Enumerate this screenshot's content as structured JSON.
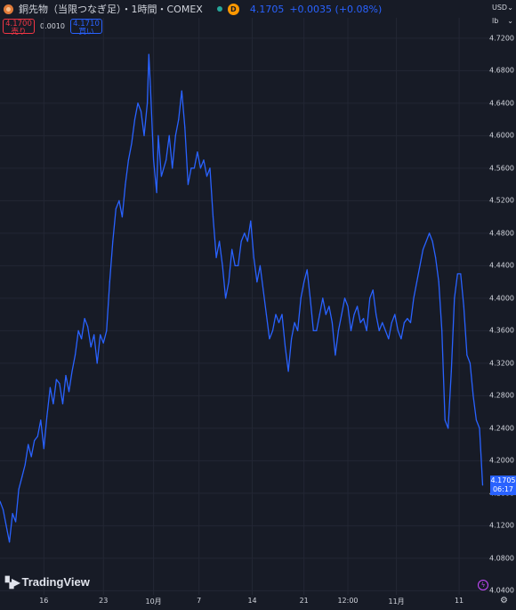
{
  "header": {
    "title": "銅先物（当限つなぎ足）・1時間・COMEX",
    "badge": "D",
    "price": "4.1705",
    "change": "+0.0035 (+0.08%)"
  },
  "quotes": {
    "sell_price": "4.1700",
    "sell_label": "売り",
    "spread": "0.0010",
    "buy_price": "4.1710",
    "buy_label": "買い"
  },
  "axis_controls": {
    "currency": "USD",
    "unit": "lb"
  },
  "last_price_tag": {
    "price": "4.1705",
    "countdown": "06:17"
  },
  "logo": {
    "text": "TradingView"
  },
  "colors": {
    "background": "#171b26",
    "line": "#2962ff",
    "grid": "#232734",
    "text": "#d1d4dc"
  },
  "chart_data": {
    "type": "line",
    "title": "銅先物（当限つなぎ足）・1時間・COMEX",
    "xlabel": "",
    "ylabel": "",
    "ylim": [
      4.035,
      4.745
    ],
    "y_ticks": [
      4.04,
      4.08,
      4.12,
      4.16,
      4.2,
      4.24,
      4.28,
      4.32,
      4.36,
      4.4,
      4.44,
      4.48,
      4.52,
      4.56,
      4.6,
      4.64,
      4.68,
      4.72
    ],
    "y_tick_labels": [
      "4.0400",
      "4.0800",
      "4.1200",
      "4.1600",
      "4.2000",
      "4.2400",
      "4.2800",
      "4.3200",
      "4.3600",
      "4.4000",
      "4.4400",
      "4.4800",
      "4.5200",
      "4.5600",
      "4.6000",
      "4.6400",
      "4.6800",
      "4.7200"
    ],
    "x_tick_labels": [
      "16",
      "23",
      "10月",
      "7",
      "14",
      "21",
      "12:00",
      "11月",
      "11"
    ],
    "x_tick_index": [
      28,
      66,
      98,
      127,
      161,
      194,
      222,
      253,
      293
    ],
    "x_range": [
      0,
      310
    ],
    "series": [
      {
        "values": [
          [
            0,
            4.15
          ],
          [
            2,
            4.14
          ],
          [
            4,
            4.12
          ],
          [
            6,
            4.1
          ],
          [
            8,
            4.135
          ],
          [
            10,
            4.125
          ],
          [
            12,
            4.165
          ],
          [
            14,
            4.18
          ],
          [
            16,
            4.195
          ],
          [
            18,
            4.22
          ],
          [
            20,
            4.205
          ],
          [
            22,
            4.225
          ],
          [
            24,
            4.23
          ],
          [
            26,
            4.25
          ],
          [
            28,
            4.215
          ],
          [
            30,
            4.255
          ],
          [
            32,
            4.29
          ],
          [
            34,
            4.27
          ],
          [
            36,
            4.3
          ],
          [
            38,
            4.295
          ],
          [
            40,
            4.27
          ],
          [
            42,
            4.305
          ],
          [
            44,
            4.285
          ],
          [
            46,
            4.31
          ],
          [
            48,
            4.33
          ],
          [
            50,
            4.36
          ],
          [
            52,
            4.35
          ],
          [
            54,
            4.375
          ],
          [
            56,
            4.365
          ],
          [
            58,
            4.34
          ],
          [
            60,
            4.355
          ],
          [
            62,
            4.32
          ],
          [
            64,
            4.355
          ],
          [
            66,
            4.345
          ],
          [
            68,
            4.36
          ],
          [
            70,
            4.42
          ],
          [
            72,
            4.47
          ],
          [
            74,
            4.51
          ],
          [
            76,
            4.52
          ],
          [
            78,
            4.5
          ],
          [
            80,
            4.54
          ],
          [
            82,
            4.57
          ],
          [
            84,
            4.59
          ],
          [
            86,
            4.62
          ],
          [
            88,
            4.64
          ],
          [
            90,
            4.63
          ],
          [
            92,
            4.6
          ],
          [
            94,
            4.64
          ],
          [
            95,
            4.7
          ],
          [
            96,
            4.66
          ],
          [
            98,
            4.57
          ],
          [
            100,
            4.53
          ],
          [
            101,
            4.6
          ],
          [
            103,
            4.55
          ],
          [
            106,
            4.57
          ],
          [
            108,
            4.6
          ],
          [
            110,
            4.56
          ],
          [
            112,
            4.6
          ],
          [
            114,
            4.62
          ],
          [
            116,
            4.655
          ],
          [
            118,
            4.61
          ],
          [
            120,
            4.54
          ],
          [
            122,
            4.56
          ],
          [
            124,
            4.56
          ],
          [
            126,
            4.58
          ],
          [
            128,
            4.56
          ],
          [
            130,
            4.57
          ],
          [
            132,
            4.55
          ],
          [
            134,
            4.56
          ],
          [
            136,
            4.5
          ],
          [
            138,
            4.45
          ],
          [
            140,
            4.47
          ],
          [
            142,
            4.44
          ],
          [
            144,
            4.4
          ],
          [
            146,
            4.42
          ],
          [
            148,
            4.46
          ],
          [
            150,
            4.44
          ],
          [
            152,
            4.44
          ],
          [
            154,
            4.47
          ],
          [
            156,
            4.48
          ],
          [
            158,
            4.47
          ],
          [
            160,
            4.495
          ],
          [
            162,
            4.45
          ],
          [
            164,
            4.42
          ],
          [
            166,
            4.44
          ],
          [
            168,
            4.41
          ],
          [
            170,
            4.38
          ],
          [
            172,
            4.35
          ],
          [
            174,
            4.36
          ],
          [
            176,
            4.38
          ],
          [
            178,
            4.37
          ],
          [
            180,
            4.38
          ],
          [
            182,
            4.34
          ],
          [
            184,
            4.31
          ],
          [
            186,
            4.35
          ],
          [
            188,
            4.37
          ],
          [
            190,
            4.36
          ],
          [
            192,
            4.4
          ],
          [
            194,
            4.42
          ],
          [
            196,
            4.435
          ],
          [
            198,
            4.4
          ],
          [
            200,
            4.36
          ],
          [
            202,
            4.36
          ],
          [
            204,
            4.38
          ],
          [
            206,
            4.4
          ],
          [
            208,
            4.38
          ],
          [
            210,
            4.39
          ],
          [
            212,
            4.37
          ],
          [
            214,
            4.33
          ],
          [
            216,
            4.36
          ],
          [
            218,
            4.38
          ],
          [
            220,
            4.4
          ],
          [
            222,
            4.39
          ],
          [
            224,
            4.36
          ],
          [
            226,
            4.38
          ],
          [
            228,
            4.39
          ],
          [
            230,
            4.37
          ],
          [
            232,
            4.375
          ],
          [
            234,
            4.36
          ],
          [
            236,
            4.4
          ],
          [
            238,
            4.41
          ],
          [
            240,
            4.38
          ],
          [
            242,
            4.36
          ],
          [
            244,
            4.37
          ],
          [
            246,
            4.36
          ],
          [
            248,
            4.35
          ],
          [
            250,
            4.37
          ],
          [
            252,
            4.38
          ],
          [
            254,
            4.36
          ],
          [
            256,
            4.35
          ],
          [
            258,
            4.37
          ],
          [
            260,
            4.375
          ],
          [
            262,
            4.37
          ],
          [
            264,
            4.4
          ],
          [
            266,
            4.42
          ],
          [
            268,
            4.44
          ],
          [
            270,
            4.46
          ],
          [
            272,
            4.47
          ],
          [
            274,
            4.48
          ],
          [
            276,
            4.47
          ],
          [
            278,
            4.45
          ],
          [
            280,
            4.42
          ],
          [
            282,
            4.36
          ],
          [
            284,
            4.25
          ],
          [
            286,
            4.24
          ],
          [
            288,
            4.31
          ],
          [
            290,
            4.4
          ],
          [
            292,
            4.43
          ],
          [
            294,
            4.43
          ],
          [
            296,
            4.39
          ],
          [
            298,
            4.33
          ],
          [
            300,
            4.32
          ],
          [
            302,
            4.28
          ],
          [
            304,
            4.25
          ],
          [
            306,
            4.24
          ],
          [
            308,
            4.17
          ]
        ]
      }
    ]
  }
}
